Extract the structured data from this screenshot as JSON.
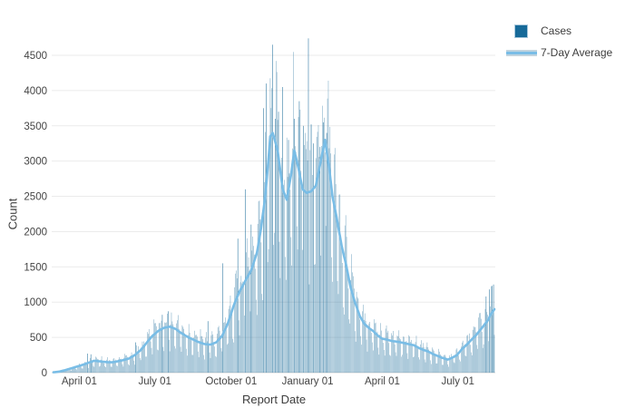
{
  "chart_data": {
    "type": "bar",
    "title": "",
    "xlabel": "Report Date",
    "ylabel": "Count",
    "ylim": [
      0,
      4700
    ],
    "grid": "horizontal",
    "legend_position": "top-right",
    "y_ticks": [
      0,
      500,
      1000,
      1500,
      2000,
      2500,
      3000,
      3500,
      4000,
      4500
    ],
    "x_ticks": [
      {
        "label": "April 01",
        "day": 31
      },
      {
        "label": "July 01",
        "day": 122
      },
      {
        "label": "October 01",
        "day": 214
      },
      {
        "label": "January 01",
        "day": 306
      },
      {
        "label": "April 01",
        "day": 396
      },
      {
        "label": "July 01",
        "day": 487
      }
    ],
    "date_range": {
      "start": "2020-03-01",
      "end": "2021-08-14",
      "total_days": 532
    },
    "series": [
      {
        "name": "Cases",
        "type": "bar",
        "color": "#176a99",
        "fill_opacity": 0.5,
        "swatch_border": "#a8c8dc"
      },
      {
        "name": "7-Day Average",
        "type": "line",
        "color": "#79bde6",
        "swatch_edge": "#c2d4de",
        "width": 2.6
      }
    ],
    "avg_7day_anchors": [
      [
        0,
        5
      ],
      [
        7,
        15
      ],
      [
        14,
        35
      ],
      [
        21,
        60
      ],
      [
        28,
        85
      ],
      [
        35,
        110
      ],
      [
        42,
        140
      ],
      [
        49,
        168
      ],
      [
        56,
        160
      ],
      [
        63,
        150
      ],
      [
        70,
        146
      ],
      [
        77,
        160
      ],
      [
        84,
        178
      ],
      [
        91,
        200
      ],
      [
        98,
        250
      ],
      [
        105,
        320
      ],
      [
        112,
        420
      ],
      [
        119,
        520
      ],
      [
        126,
        590
      ],
      [
        133,
        635
      ],
      [
        140,
        652
      ],
      [
        147,
        620
      ],
      [
        154,
        560
      ],
      [
        161,
        510
      ],
      [
        168,
        470
      ],
      [
        175,
        432
      ],
      [
        182,
        405
      ],
      [
        189,
        398
      ],
      [
        196,
        430
      ],
      [
        203,
        520
      ],
      [
        210,
        700
      ],
      [
        217,
        950
      ],
      [
        224,
        1150
      ],
      [
        231,
        1300
      ],
      [
        238,
        1450
      ],
      [
        245,
        1700
      ],
      [
        250,
        2050
      ],
      [
        255,
        2500
      ],
      [
        258,
        2900
      ],
      [
        261,
        3350
      ],
      [
        264,
        3400
      ],
      [
        270,
        3150
      ],
      [
        276,
        2600
      ],
      [
        281,
        2450
      ],
      [
        286,
        2800
      ],
      [
        290,
        3150
      ],
      [
        295,
        2900
      ],
      [
        300,
        2600
      ],
      [
        305,
        2550
      ],
      [
        310,
        2570
      ],
      [
        316,
        2650
      ],
      [
        321,
        2950
      ],
      [
        327,
        3300
      ],
      [
        332,
        2900
      ],
      [
        336,
        2500
      ],
      [
        341,
        2200
      ],
      [
        347,
        1800
      ],
      [
        352,
        1550
      ],
      [
        358,
        1200
      ],
      [
        363,
        1000
      ],
      [
        369,
        800
      ],
      [
        374,
        700
      ],
      [
        380,
        630
      ],
      [
        385,
        590
      ],
      [
        391,
        520
      ],
      [
        396,
        480
      ],
      [
        401,
        470
      ],
      [
        407,
        450
      ],
      [
        413,
        440
      ],
      [
        418,
        430
      ],
      [
        424,
        415
      ],
      [
        429,
        400
      ],
      [
        434,
        390
      ],
      [
        440,
        350
      ],
      [
        446,
        320
      ],
      [
        451,
        300
      ],
      [
        457,
        265
      ],
      [
        462,
        240
      ],
      [
        468,
        210
      ],
      [
        475,
        185
      ],
      [
        480,
        210
      ],
      [
        486,
        250
      ],
      [
        491,
        320
      ],
      [
        497,
        390
      ],
      [
        502,
        450
      ],
      [
        508,
        520
      ],
      [
        513,
        590
      ],
      [
        519,
        680
      ],
      [
        523,
        740
      ],
      [
        527,
        830
      ],
      [
        531,
        900
      ]
    ],
    "daily_spikes": {
      "41": 270,
      "45": 260,
      "99": 430,
      "131": 820,
      "138": 870,
      "186": 730,
      "204": 1550,
      "222": 1900,
      "231": 2600,
      "238": 2100,
      "253": 3750,
      "256": 4100,
      "264": 4650,
      "267": 3600,
      "271": 3700,
      "276": 4050,
      "283": 3300,
      "290": 3600,
      "296": 3850,
      "301": 3500,
      "307": 4740,
      "313": 3250,
      "321": 3200,
      "325": 3550,
      "329": 3400,
      "521": 1080,
      "525": 1180,
      "528": 1230,
      "530": 1250
    },
    "weekday_factors": [
      0.52,
      1.18,
      1.3,
      1.22,
      1.12,
      1.02,
      0.62
    ],
    "noise": {
      "seed": 42,
      "amplitude": 0.16
    },
    "colors": {
      "gridline": "#ebebeb",
      "zeroline": "#d9d9d9",
      "tick_text": "#444444",
      "title_text": "#3d3d3d"
    }
  }
}
